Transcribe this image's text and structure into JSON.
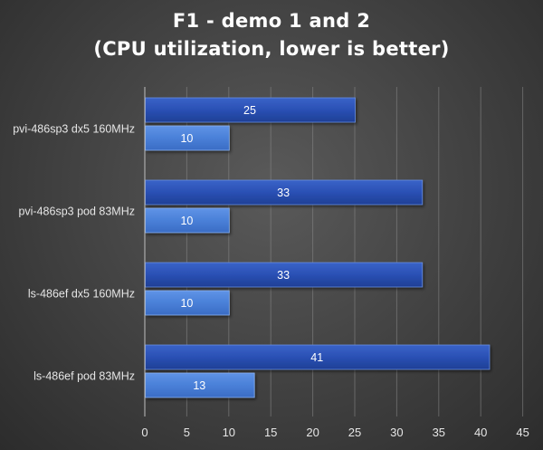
{
  "chart_data": {
    "type": "bar",
    "orientation": "horizontal",
    "title": [
      "F1 - demo 1 and 2",
      "(CPU utilization, lower is better)"
    ],
    "xlabel": "",
    "ylabel": "",
    "xlim": [
      0,
      45
    ],
    "xticks": [
      0,
      5,
      10,
      15,
      20,
      25,
      30,
      35,
      40,
      45
    ],
    "grid": true,
    "legend": "none",
    "categories": [
      "pvi-486sp3 dx5 160MHz",
      "pvi-486sp3 pod 83MHz",
      "ls-486ef dx5 160MHz",
      "ls-486ef pod 83MHz"
    ],
    "series": [
      {
        "values": [
          25,
          33,
          33,
          41
        ],
        "color": "#2a4fb0"
      },
      {
        "values": [
          10,
          10,
          10,
          13
        ],
        "color": "#4a80d8"
      }
    ]
  }
}
